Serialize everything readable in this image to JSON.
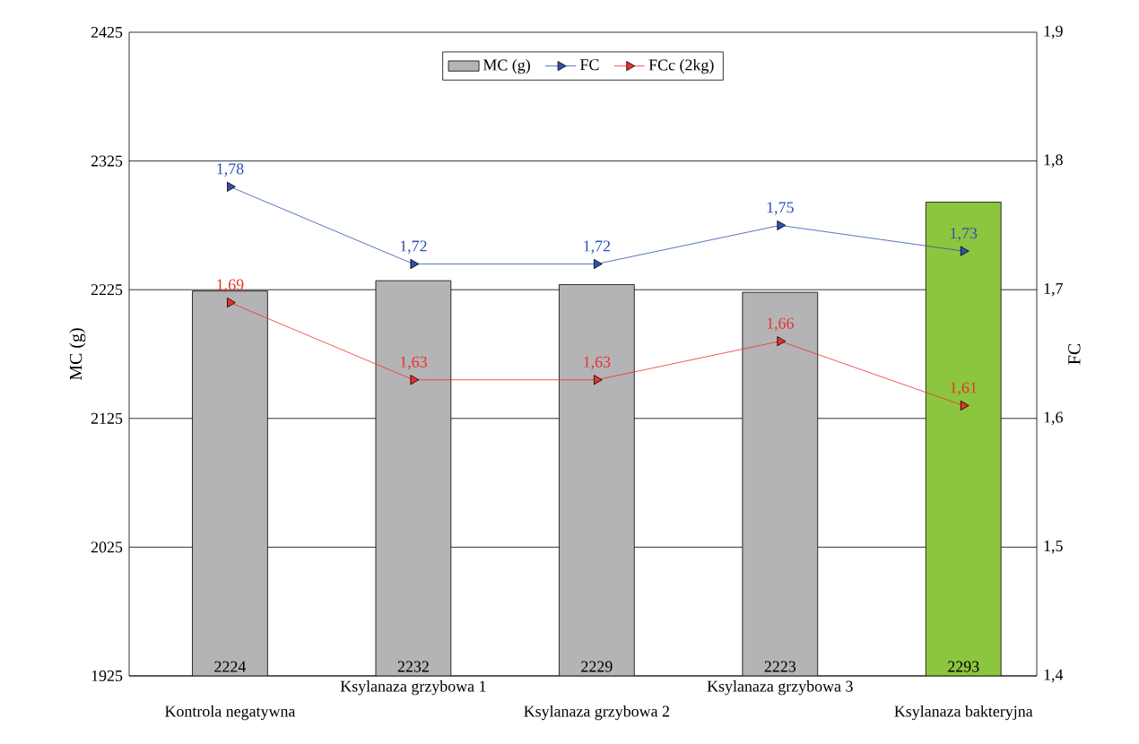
{
  "chart_data": {
    "type": "bar",
    "categories": [
      "Kontrola negatywna",
      "Ksylanaza grzybowa 1",
      "Ksylanaza grzybowa 2",
      "Ksylanaza grzybowa 3",
      "Ksylanaza bakteryjna"
    ],
    "series": [
      {
        "name": "MC (g)",
        "colors": [
          "#b4b4b6",
          "#b4b4b6",
          "#b4b4b6",
          "#b4b4b6",
          "#8cc63e"
        ],
        "values": [
          2224,
          2232,
          2229,
          2223,
          2293
        ],
        "value_labels": [
          "2224",
          "2232",
          "2229",
          "2223",
          "2293"
        ]
      },
      {
        "name": "FC",
        "type": "line",
        "axis": "y2",
        "color": "#2e4fb4",
        "values": [
          1.78,
          1.72,
          1.72,
          1.75,
          1.73
        ],
        "value_labels": [
          "1,78",
          "1,72",
          "1,72",
          "1,75",
          "1,73"
        ]
      },
      {
        "name": "FCc (2kg)",
        "type": "line",
        "axis": "y2",
        "color": "#e8322a",
        "values": [
          1.69,
          1.63,
          1.63,
          1.66,
          1.61
        ],
        "value_labels": [
          "1,69",
          "1,63",
          "1,63",
          "1,66",
          "1,61"
        ]
      }
    ],
    "ylabel": "MC (g)",
    "y2label": "FC",
    "ylim": [
      1925,
      2425
    ],
    "yticks": [
      1925,
      2025,
      2125,
      2225,
      2325,
      2425
    ],
    "y2lim": [
      1.4,
      1.9
    ],
    "y2ticks": [
      {
        "value": 1.4,
        "label": "1,4"
      },
      {
        "value": 1.5,
        "label": "1,5"
      },
      {
        "value": 1.6,
        "label": "1,6"
      },
      {
        "value": 1.7,
        "label": "1,7"
      },
      {
        "value": 1.8,
        "label": "1,8"
      },
      {
        "value": 1.9,
        "label": "1,9"
      }
    ],
    "grid": "y",
    "legend": "top",
    "marker": "triangle",
    "line_style": "solid"
  }
}
